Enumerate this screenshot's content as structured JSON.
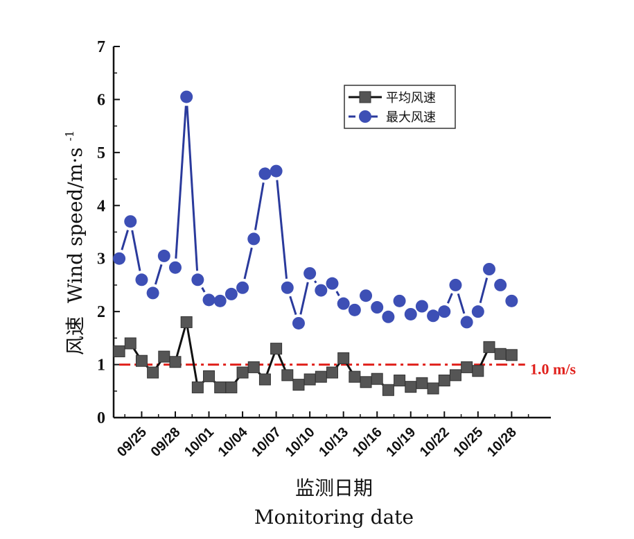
{
  "chart_data": {
    "type": "line",
    "y_ticks": [
      0,
      1,
      2,
      3,
      4,
      5,
      6,
      7
    ],
    "ylim": [
      0,
      7
    ],
    "ylabel_cn": "风速",
    "ylabel_en": "Wind speed/m·s",
    "ylabel_sup": "-1",
    "xlabel_cn": "监测日期",
    "xlabel_en": "Monitoring date",
    "x_tick_labels": [
      "09/25",
      "09/28",
      "10/01",
      "10/04",
      "10/07",
      "10/10",
      "10/13",
      "10/16",
      "10/19",
      "10/22",
      "10/25",
      "10/28"
    ],
    "x_tick_index": [
      2,
      5,
      8,
      11,
      14,
      17,
      20,
      23,
      26,
      29,
      32,
      35
    ],
    "x_index_range": [
      -0.5,
      38.5
    ],
    "series": [
      {
        "name": "平均风速",
        "style": "solid",
        "marker": "square",
        "color": "#111111",
        "marker_color": "#555555",
        "values": [
          1.25,
          1.4,
          1.07,
          0.85,
          1.15,
          1.05,
          1.8,
          0.57,
          0.78,
          0.57,
          0.57,
          0.85,
          0.95,
          0.72,
          1.3,
          0.8,
          0.62,
          0.72,
          0.77,
          0.85,
          1.12,
          0.77,
          0.67,
          0.73,
          0.52,
          0.7,
          0.58,
          0.65,
          0.55,
          0.7,
          0.8,
          0.95,
          0.88,
          1.33,
          1.2,
          1.18
        ]
      },
      {
        "name": "最大风速",
        "style": "dashed",
        "marker": "circle",
        "color": "#2a3a9c",
        "marker_color": "#3d4fb5",
        "values": [
          3.0,
          3.7,
          2.6,
          2.35,
          3.05,
          2.83,
          6.05,
          2.6,
          2.22,
          2.2,
          2.33,
          2.45,
          3.37,
          4.6,
          4.65,
          2.45,
          1.78,
          2.72,
          2.4,
          2.53,
          2.15,
          2.03,
          2.3,
          2.08,
          1.9,
          2.2,
          1.95,
          2.1,
          1.92,
          2.0,
          2.5,
          1.8,
          2.0,
          2.8,
          2.5,
          2.2
        ]
      }
    ],
    "reference_line": {
      "y": 1.0,
      "label": "1.0 m/s",
      "color": "#e0201b",
      "style": "dash-dot"
    },
    "legend_position": "top-right",
    "grid": false
  }
}
